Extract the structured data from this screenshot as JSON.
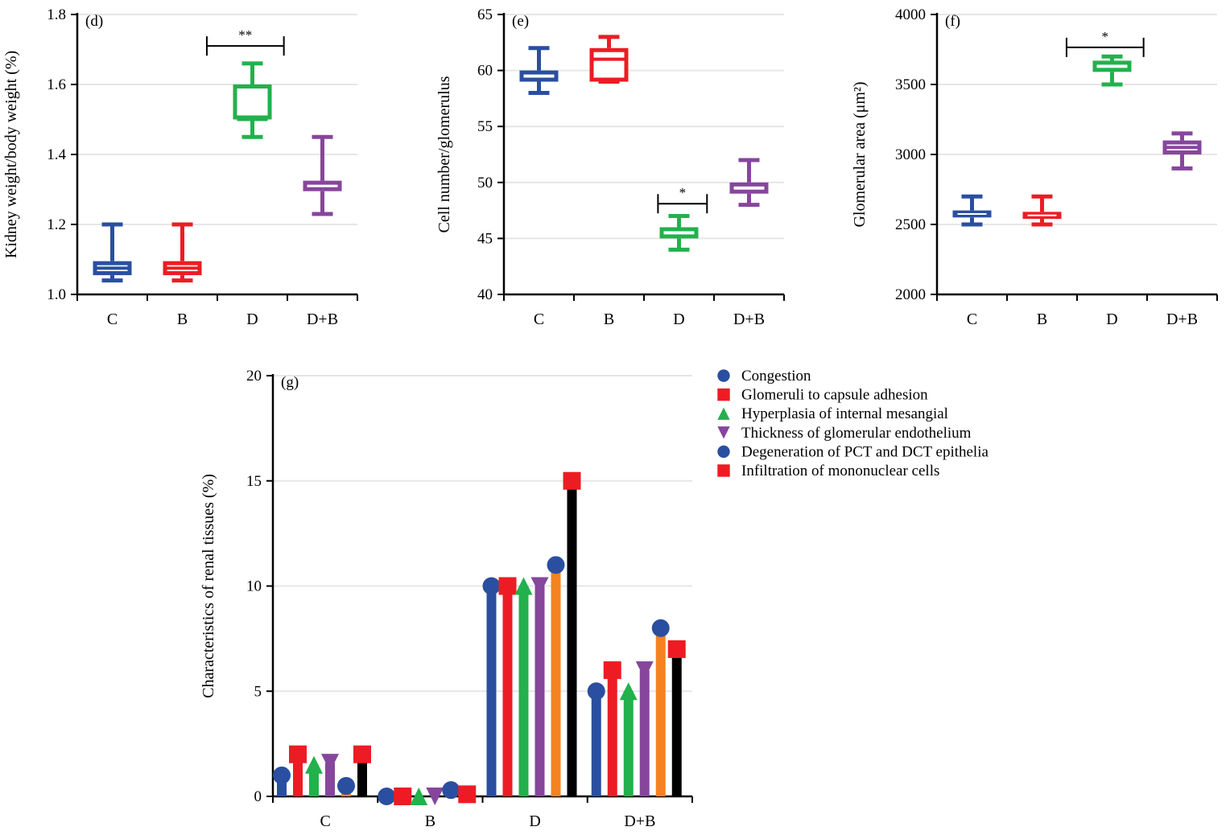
{
  "colors": {
    "C": "#2a4fa0",
    "B": "#ed1c24",
    "D": "#22b14c",
    "D+B": "#86469c",
    "orange": "#f58220",
    "black": "#000000",
    "grid": "#e6e6e6"
  },
  "chart_data": [
    {
      "type": "box",
      "panel": "(d)",
      "ylabel": "Kidney weight/body weight (%)",
      "categories": [
        "C",
        "B",
        "D",
        "D+B"
      ],
      "ylim": [
        1.0,
        1.8
      ],
      "yticks": [
        "1.0",
        "1.2",
        "1.4",
        "1.6",
        "1.8"
      ],
      "grid": true,
      "boxes": [
        {
          "min": 1.04,
          "q1": 1.055,
          "median": 1.075,
          "q3": 1.095,
          "max": 1.2
        },
        {
          "min": 1.04,
          "q1": 1.055,
          "median": 1.075,
          "q3": 1.095,
          "max": 1.2
        },
        {
          "min": 1.45,
          "q1": 1.5,
          "median": 1.5,
          "q3": 1.6,
          "max": 1.66
        },
        {
          "min": 1.23,
          "q1": 1.295,
          "median": 1.31,
          "q3": 1.325,
          "max": 1.45
        }
      ],
      "significance": {
        "label": "**",
        "y": 1.71,
        "from": "C-B boundary",
        "to": "D-(D+B) boundary"
      }
    },
    {
      "type": "box",
      "panel": "(e)",
      "ylabel": "Cell number/glomerulus",
      "categories": [
        "C",
        "B",
        "D",
        "D+B"
      ],
      "ylim": [
        40,
        65
      ],
      "yticks": [
        "40",
        "45",
        "50",
        "55",
        "60",
        "65"
      ],
      "grid": true,
      "boxes": [
        {
          "min": 58,
          "q1": 59,
          "median": 59.5,
          "q3": 60,
          "max": 62
        },
        {
          "min": 59,
          "q1": 59,
          "median": 61,
          "q3": 62,
          "max": 63
        },
        {
          "min": 44,
          "q1": 45,
          "median": 45.5,
          "q3": 46,
          "max": 47
        },
        {
          "min": 48,
          "q1": 49,
          "median": 49.5,
          "q3": 50,
          "max": 52
        }
      ],
      "significance": {
        "label": "*",
        "y": 48.1
      }
    },
    {
      "type": "box",
      "panel": "(f)",
      "ylabel": "Glomerular area (μm²)",
      "categories": [
        "C",
        "B",
        "D",
        "D+B"
      ],
      "ylim": [
        2000,
        4000
      ],
      "yticks": [
        "2000",
        "2500",
        "3000",
        "3500",
        "4000"
      ],
      "grid": true,
      "boxes": [
        {
          "min": 2500,
          "q1": 2550,
          "median": 2575,
          "q3": 2600,
          "max": 2700
        },
        {
          "min": 2500,
          "q1": 2540,
          "median": 2565,
          "q3": 2590,
          "max": 2700
        },
        {
          "min": 3500,
          "q1": 3590,
          "median": 3630,
          "q3": 3670,
          "max": 3700
        },
        {
          "min": 2900,
          "q1": 3000,
          "median": 3050,
          "q3": 3100,
          "max": 3150
        }
      ],
      "significance": {
        "label": "*",
        "y": 3765
      }
    },
    {
      "type": "bar",
      "panel": "(g)",
      "ylabel": "Characteristics of renal tissues (%)",
      "categories": [
        "C",
        "B",
        "D",
        "D+B"
      ],
      "ylim": [
        0,
        20
      ],
      "yticks": [
        "0",
        "5",
        "10",
        "15",
        "20"
      ],
      "grid": true,
      "legend": "right",
      "series": [
        {
          "name": "Congestion",
          "marker": "circle",
          "marker_color": "#2a4fa0",
          "bar_color": "#2a4fa0",
          "values": [
            1,
            0,
            10,
            5
          ]
        },
        {
          "name": "Glomeruli to capsule adhesion",
          "marker": "square",
          "marker_color": "#ed1c24",
          "bar_color": "#ed1c24",
          "values": [
            2,
            0,
            10,
            6
          ]
        },
        {
          "name": "Hyperplasia of internal mesangial",
          "marker": "triangle-up",
          "marker_color": "#22b14c",
          "bar_color": "#22b14c",
          "values": [
            1.5,
            0,
            10,
            5
          ]
        },
        {
          "name": "Thickness of glomerular endothelium",
          "marker": "triangle-down",
          "marker_color": "#86469c",
          "bar_color": "#86469c",
          "values": [
            1.6,
            0,
            10,
            6
          ]
        },
        {
          "name": "Degeneration of PCT and DCT epithelia",
          "marker": "circle",
          "marker_color": "#2a4fa0",
          "bar_color": "#f58220",
          "values": [
            0.5,
            0.3,
            11,
            8
          ]
        },
        {
          "name": "Infiltration of mononuclear cells",
          "marker": "square",
          "marker_color": "#ed1c24",
          "bar_color": "#000000",
          "values": [
            2,
            0.1,
            15,
            7
          ]
        }
      ]
    }
  ]
}
